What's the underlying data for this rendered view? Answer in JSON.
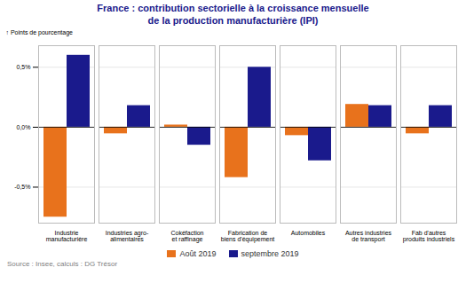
{
  "chart_data": {
    "type": "bar",
    "title": "France : contribution sectorielle à la croissance mensuelle\nde la production manufacturière (IPI)",
    "ylabel": "Points de pourcentage",
    "annotations": [
      "Source : Insee, calculs : DG Trésor"
    ],
    "categories": [
      "Industrie\nmanufacturière",
      "Industries agro-\nalimentaires",
      "Cokéfaction\net raffinage",
      "Fabrication de\nbiens d'équipement",
      "Automobiles",
      "Autres industries\nde transport",
      "Fab d'autres\nproduits industriels"
    ],
    "series": [
      {
        "name": "Août 2019",
        "color": "#E8721C",
        "values": [
          -0.75,
          -0.055,
          0.018,
          -0.42,
          -0.07,
          0.19,
          -0.055
        ]
      },
      {
        "name": "septembre 2019",
        "color": "#1A1A8C",
        "values": [
          0.6,
          0.18,
          -0.15,
          0.5,
          -0.28,
          0.18,
          0.18
        ]
      }
    ],
    "ylim": [
      -0.8,
      0.68
    ],
    "yticks": [
      {
        "value": -0.5,
        "label": "-0,5%"
      },
      {
        "value": 0.0,
        "label": "0,0%"
      },
      {
        "value": 0.5,
        "label": "0,5%"
      }
    ],
    "grid": true,
    "legend": "bottom"
  }
}
